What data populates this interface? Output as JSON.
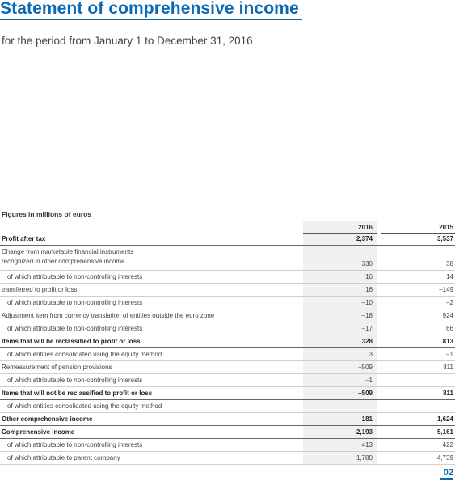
{
  "title": "Statement of comprehensive income",
  "subtitle": "for the period from January 1 to December 31, 2016",
  "figures_note": "Figures in millions of euros",
  "years": [
    "2016",
    "2015"
  ],
  "rows": [
    {
      "label": "Profit after tax",
      "v2016": "2,374",
      "v2015": "3,537",
      "bold": true,
      "indent": false,
      "two_line": false
    },
    {
      "label": "Change from marketable financial instruments\nrecognized in other comprehensive income",
      "v2016": "330",
      "v2015": "38",
      "bold": false,
      "indent": false,
      "two_line": true
    },
    {
      "label": "of which attributable to non-controlling interests",
      "v2016": "16",
      "v2015": "14",
      "bold": false,
      "indent": true,
      "two_line": false
    },
    {
      "label": "transferred to profit or loss",
      "v2016": "16",
      "v2015": "–149",
      "bold": false,
      "indent": false,
      "two_line": false
    },
    {
      "label": "of which attributable to non-controlling interests",
      "v2016": "–10",
      "v2015": "–2",
      "bold": false,
      "indent": true,
      "two_line": false
    },
    {
      "label": "Adjustment item from currency translation of entities outside the euro zone",
      "v2016": "–18",
      "v2015": "924",
      "bold": false,
      "indent": false,
      "two_line": false
    },
    {
      "label": "of which attributable to non-controlling interests",
      "v2016": "–17",
      "v2015": "66",
      "bold": false,
      "indent": true,
      "two_line": false
    },
    {
      "label": "Items that will be reclassified to profit or loss",
      "v2016": "328",
      "v2015": "813",
      "bold": true,
      "indent": false,
      "two_line": false
    },
    {
      "label": "of which entities consolidated using the equity method",
      "v2016": "3",
      "v2015": "–1",
      "bold": false,
      "indent": true,
      "two_line": false
    },
    {
      "label": "Remeasurement of pension provisions",
      "v2016": "–509",
      "v2015": "811",
      "bold": false,
      "indent": false,
      "two_line": false
    },
    {
      "label": "of which attributable to non-controlling interests",
      "v2016": "–1",
      "v2015": "",
      "bold": false,
      "indent": true,
      "two_line": false
    },
    {
      "label": "Items that will not be reclassified to profit or loss",
      "v2016": "–509",
      "v2015": "811",
      "bold": true,
      "indent": false,
      "two_line": false
    },
    {
      "label": "of which entities consolidated using the equity method",
      "v2016": "",
      "v2015": "",
      "bold": false,
      "indent": true,
      "two_line": false
    },
    {
      "label": "Other comprehensive income",
      "v2016": "–181",
      "v2015": "1,624",
      "bold": true,
      "indent": false,
      "two_line": false
    },
    {
      "label": "Comprehensive income",
      "v2016": "2,193",
      "v2015": "5,161",
      "bold": true,
      "indent": false,
      "two_line": false
    },
    {
      "label": "of which attributable to non-controlling interests",
      "v2016": "413",
      "v2015": "422",
      "bold": false,
      "indent": true,
      "two_line": false
    },
    {
      "label": "of which attributable to parent company",
      "v2016": "1,780",
      "v2015": "4,739",
      "bold": false,
      "indent": true,
      "two_line": false
    }
  ],
  "page_number": "02",
  "colors": {
    "accent": "#0a6ab5",
    "shade": "#f0f0f0"
  }
}
